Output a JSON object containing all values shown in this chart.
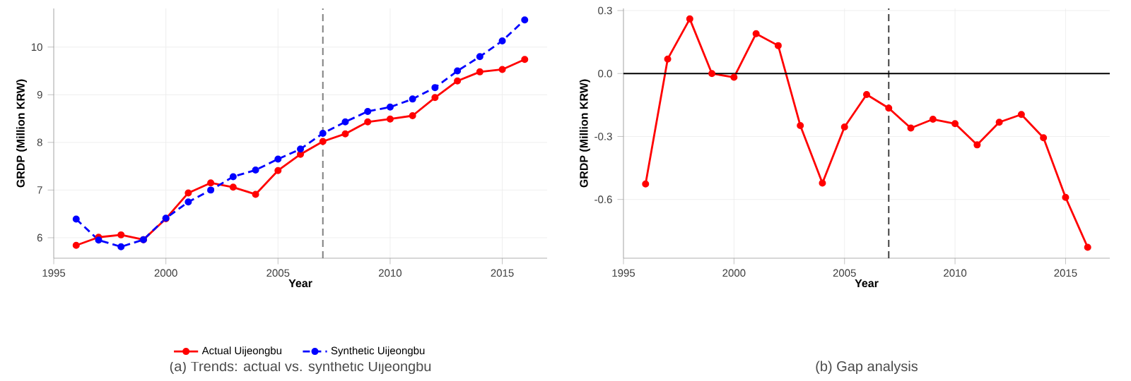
{
  "chart_data": [
    {
      "type": "line",
      "xlabel": "Year",
      "ylabel": "GRDP (Million KRW)",
      "x": [
        1996,
        1997,
        1998,
        1999,
        2000,
        2001,
        2002,
        2003,
        2004,
        2005,
        2006,
        2007,
        2008,
        2009,
        2010,
        2011,
        2012,
        2013,
        2014,
        2015,
        2016
      ],
      "series": [
        {
          "name": "Actual Uijeongbu",
          "color": "#ff0000",
          "line_style": "solid",
          "values": [
            5.84,
            6.01,
            6.06,
            5.96,
            6.4,
            6.94,
            7.15,
            7.06,
            6.91,
            7.41,
            7.75,
            8.02,
            8.18,
            8.43,
            8.49,
            8.56,
            8.94,
            9.29,
            9.48,
            9.53,
            9.74
          ]
        },
        {
          "name": "Synthetic Uijeongbu",
          "color": "#0000ff",
          "line_style": "dashed",
          "values": [
            6.39,
            5.95,
            5.81,
            5.96,
            6.41,
            6.75,
            7.0,
            7.28,
            7.42,
            7.65,
            7.86,
            8.19,
            8.43,
            8.65,
            8.74,
            8.91,
            9.15,
            9.5,
            9.8,
            10.13,
            10.57
          ]
        }
      ],
      "xlim": [
        1995,
        2017
      ],
      "xticks": [
        1995,
        2000,
        2005,
        2010,
        2015
      ],
      "ylim": [
        5.57,
        10.81
      ],
      "yticks": [
        6,
        7,
        8,
        9,
        10
      ],
      "ref_lines": [
        {
          "axis": "x",
          "value": 2007,
          "color": "#808080",
          "line_style": "dashed"
        }
      ],
      "grid": true,
      "legend": "bottom",
      "marker": "circle",
      "annotations": [
        "(a) Trends: actual vs. synthetic Uijeongbu"
      ]
    },
    {
      "type": "line",
      "xlabel": "Year",
      "ylabel": "GRDP (Million KRW)",
      "x": [
        1996,
        1997,
        1998,
        1999,
        2000,
        2001,
        2002,
        2003,
        2004,
        2005,
        2006,
        2007,
        2008,
        2009,
        2010,
        2011,
        2012,
        2013,
        2014,
        2015,
        2016
      ],
      "series": [
        {
          "color": "#ff0000",
          "line_style": "solid",
          "values": [
            -0.526,
            0.069,
            0.26,
            0.0,
            -0.018,
            0.19,
            0.133,
            -0.248,
            -0.522,
            -0.255,
            -0.1,
            -0.165,
            -0.26,
            -0.218,
            -0.239,
            -0.34,
            -0.232,
            -0.195,
            -0.306,
            -0.59,
            -0.828
          ]
        }
      ],
      "xlim": [
        1995,
        2017
      ],
      "xticks": [
        1995,
        2000,
        2005,
        2010,
        2015
      ],
      "ylim": [
        -0.88,
        0.31
      ],
      "yticks": [
        {
          "value": -0.6,
          "label": "-0.6"
        },
        {
          "value": -0.3,
          "label": "-0.3"
        },
        {
          "value": 0,
          "label": "0.0"
        },
        0.3
      ],
      "ref_lines": [
        {
          "axis": "x",
          "value": 2007,
          "color": "#404040",
          "line_style": "dashed"
        },
        {
          "axis": "y",
          "value": 0,
          "color": "#000000",
          "line_style": "solid"
        }
      ],
      "grid": true,
      "legend": false,
      "marker": "circle",
      "annotations": [
        "(b) Gap analysis"
      ]
    }
  ]
}
